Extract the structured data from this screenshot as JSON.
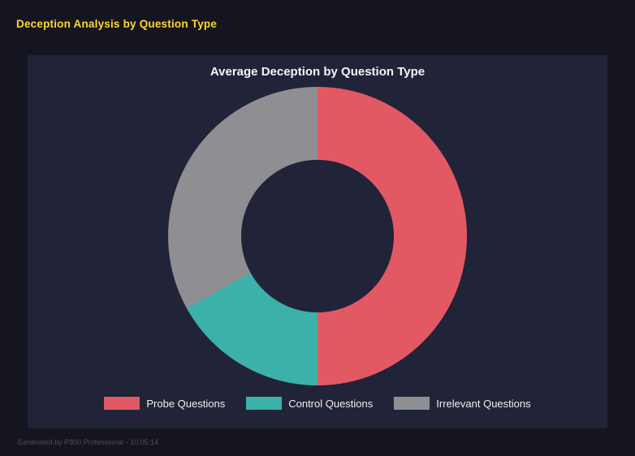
{
  "header": {
    "title": "Deception Analysis by Question Type"
  },
  "chart_data": {
    "type": "pie",
    "subtype": "donut",
    "title": "Average Deception by Question Type",
    "categories": [
      "Probe Questions",
      "Control Questions",
      "Irrelevant Questions"
    ],
    "values": [
      50,
      17,
      33
    ],
    "unit": "percent",
    "colors": [
      "#e25964",
      "#3cb1a9",
      "#8e8e93"
    ],
    "legend_position": "bottom",
    "inner_radius_ratio": 0.51,
    "start_angle_deg": 0,
    "direction": "clockwise"
  },
  "footer": {
    "text": "Generated by P300 Professional - 10:05:14"
  }
}
